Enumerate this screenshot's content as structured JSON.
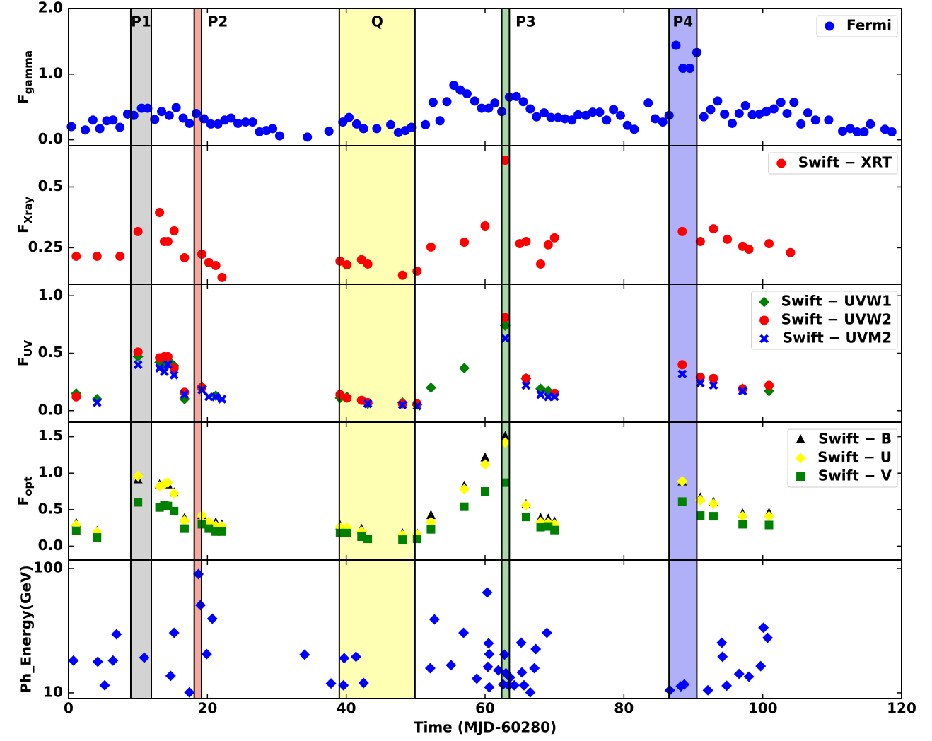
{
  "chart_data": [
    {
      "type": "scatter",
      "ylabel": "F",
      "ylabel_sub": "gamma",
      "xlim": [
        0,
        120
      ],
      "xticks": [
        0,
        20,
        40,
        60,
        80,
        100,
        120
      ],
      "ylim": [
        -0.09,
        2.0
      ],
      "yticks": [
        {
          "value": 0,
          "label": "0.0"
        },
        {
          "value": 1,
          "label": "1.0"
        },
        {
          "value": 2,
          "label": "2.0"
        }
      ],
      "legend": "upper right",
      "bands": [
        {
          "label": "P1",
          "range": [
            8.96,
            11.92
          ],
          "color": "#d3d3d3"
        },
        {
          "label": "P2",
          "range": [
            18.1,
            19.15
          ],
          "color": "#f4a8a0"
        },
        {
          "label": "Q",
          "range": [
            39.0,
            49.9
          ],
          "color": "#ffffb3"
        },
        {
          "label": "P3",
          "range": [
            62.4,
            63.5
          ],
          "color": "#a8d8a8"
        },
        {
          "label": "P4",
          "range": [
            86.5,
            90.5
          ],
          "color": "#b0b0f8"
        }
      ],
      "series": [
        {
          "name": "Fermi",
          "color": "#0000ff",
          "marker": "circle",
          "x": [
            0.4,
            2.4,
            3.5,
            4.5,
            5.5,
            6.4,
            7.4,
            8.5,
            9.4,
            10.5,
            11.4,
            12.4,
            13.4,
            14.5,
            15.5,
            16.5,
            17.4,
            18.4,
            19.5,
            20.5,
            21.5,
            22.5,
            23.4,
            24.4,
            25.5,
            26.5,
            27.5,
            28.5,
            29.4,
            30.4,
            34.4,
            37.5,
            39.5,
            40.4,
            41.5,
            42.5,
            44.4,
            46.4,
            47.5,
            48.5,
            49.4,
            51.4,
            52.5,
            53.5,
            54.5,
            55.5,
            56.4,
            57.4,
            58.5,
            59.5,
            60.5,
            61.4,
            62.4,
            63.5,
            64.5,
            65.5,
            66.5,
            67.4,
            68.5,
            69.5,
            70.5,
            71.5,
            72.5,
            73.4,
            74.5,
            75.5,
            76.5,
            77.5,
            78.5,
            79.5,
            80.5,
            81.5,
            83.5,
            84.5,
            85.6,
            86.5,
            87.5,
            88.5,
            89.5,
            90.5,
            91.5,
            92.5,
            93.5,
            94.5,
            95.6,
            96.6,
            97.5,
            98.5,
            99.5,
            100.5,
            101.6,
            102.6,
            103.5,
            104.5,
            105.5,
            106.5,
            107.6,
            109.5,
            111.5,
            112.6,
            113.6,
            114.6,
            115.5,
            117.6,
            118.6
          ],
          "values": [
            0.2,
            0.15,
            0.3,
            0.17,
            0.29,
            0.3,
            0.19,
            0.39,
            0.37,
            0.48,
            0.48,
            0.31,
            0.43,
            0.37,
            0.49,
            0.33,
            0.25,
            0.4,
            0.32,
            0.24,
            0.24,
            0.3,
            0.33,
            0.25,
            0.27,
            0.27,
            0.12,
            0.14,
            0.17,
            0.06,
            0.04,
            0.13,
            0.27,
            0.34,
            0.24,
            0.17,
            0.17,
            0.23,
            0.11,
            0.14,
            0.19,
            0.23,
            0.57,
            0.29,
            0.58,
            0.83,
            0.76,
            0.7,
            0.59,
            0.48,
            0.48,
            0.56,
            0.43,
            0.65,
            0.66,
            0.58,
            0.47,
            0.35,
            0.41,
            0.34,
            0.34,
            0.32,
            0.3,
            0.38,
            0.37,
            0.42,
            0.42,
            0.3,
            0.46,
            0.37,
            0.22,
            0.16,
            0.56,
            0.32,
            0.27,
            0.37,
            1.44,
            1.09,
            1.09,
            1.33,
            0.35,
            0.46,
            0.59,
            0.39,
            0.25,
            0.4,
            0.52,
            0.38,
            0.39,
            0.43,
            0.47,
            0.57,
            0.4,
            0.57,
            0.24,
            0.41,
            0.3,
            0.3,
            0.13,
            0.17,
            0.12,
            0.12,
            0.24,
            0.16,
            0.12
          ]
        }
      ]
    },
    {
      "type": "scatter",
      "ylabel": "F",
      "ylabel_sub": "Xray",
      "xlim": [
        0,
        120
      ],
      "xticks": [
        0,
        20,
        40,
        60,
        80,
        100,
        120
      ],
      "ylim": [
        0.1,
        0.67
      ],
      "yticks": [
        0.25,
        0.5
      ],
      "legend": "upper right",
      "series": [
        {
          "name": "Swift − XRT",
          "color": "#ff0000",
          "marker": "circle",
          "x": [
            1.1,
            4.1,
            7.4,
            10.0,
            13.1,
            13.8,
            14.3,
            15.2,
            16.7,
            19.2,
            20.2,
            21.2,
            22.1,
            39.1,
            40.1,
            42.2,
            43.1,
            48.1,
            50.2,
            52.2,
            57.0,
            60.0,
            62.9,
            65.0,
            65.9,
            68.0,
            69.1,
            70.0,
            88.4,
            91.0,
            92.9,
            94.9,
            97.1,
            98.0,
            100.9,
            104.0
          ],
          "values": [
            0.215,
            0.215,
            0.215,
            0.317,
            0.395,
            0.276,
            0.276,
            0.32,
            0.209,
            0.224,
            0.189,
            0.177,
            0.128,
            0.195,
            0.18,
            0.201,
            0.183,
            0.137,
            0.154,
            0.253,
            0.273,
            0.34,
            0.61,
            0.267,
            0.276,
            0.183,
            0.262,
            0.291,
            0.317,
            0.276,
            0.328,
            0.285,
            0.256,
            0.244,
            0.267,
            0.23
          ]
        }
      ]
    },
    {
      "type": "scatter",
      "ylabel": "F",
      "ylabel_sub": "UV",
      "xlim": [
        0,
        120
      ],
      "xticks": [
        0,
        20,
        40,
        60,
        80,
        100,
        120
      ],
      "ylim": [
        -0.1,
        1.1
      ],
      "yticks": [
        {
          "value": 0,
          "label": "0.0"
        },
        0.5,
        {
          "value": 1,
          "label": "1.0"
        }
      ],
      "legend": "upper right",
      "series": [
        {
          "name": "Swift − UVW1",
          "color": "#008000",
          "marker": "diamond",
          "x": [
            1.1,
            4.1,
            10.0,
            13.1,
            13.8,
            14.5,
            15.2,
            16.7,
            19.2,
            21.2,
            39.1,
            40.1,
            43.1,
            48.1,
            50.2,
            52.2,
            57.0,
            62.9,
            65.9,
            68.0,
            69.1,
            70.0,
            97.1,
            100.9
          ],
          "values": [
            0.15,
            0.1,
            0.47,
            0.42,
            0.38,
            0.43,
            0.39,
            0.1,
            0.21,
            0.13,
            0.11,
            0.12,
            0.06,
            0.07,
            0.05,
            0.2,
            0.37,
            0.74,
            0.28,
            0.19,
            0.17,
            0.14,
            0.19,
            0.17
          ]
        },
        {
          "name": "Swift − UVW2",
          "color": "#ff0000",
          "marker": "circle",
          "x": [
            1.1,
            10.0,
            13.1,
            13.8,
            14.3,
            15.2,
            16.7,
            19.2,
            39.1,
            40.1,
            42.2,
            43.1,
            48.1,
            50.2,
            62.9,
            65.9,
            70.0,
            88.4,
            91.0,
            92.9,
            97.1,
            100.9
          ],
          "values": [
            0.12,
            0.51,
            0.46,
            0.47,
            0.47,
            0.37,
            0.16,
            0.2,
            0.14,
            0.11,
            0.09,
            0.07,
            0.06,
            0.06,
            0.81,
            0.28,
            0.15,
            0.4,
            0.29,
            0.28,
            0.19,
            0.22
          ]
        },
        {
          "name": "Swift − UVM2",
          "color": "#0000ff",
          "marker": "x",
          "x": [
            4.1,
            10.0,
            13.1,
            13.8,
            14.3,
            15.2,
            16.7,
            19.2,
            20.2,
            21.2,
            22.1,
            43.1,
            48.1,
            50.2,
            62.9,
            65.9,
            68.0,
            69.1,
            70.0,
            88.4,
            91.0,
            92.9,
            97.1
          ],
          "values": [
            0.07,
            0.4,
            0.37,
            0.34,
            0.4,
            0.31,
            0.14,
            0.18,
            0.12,
            0.12,
            0.1,
            0.06,
            0.05,
            0.04,
            0.63,
            0.22,
            0.14,
            0.12,
            0.12,
            0.32,
            0.24,
            0.22,
            0.17
          ]
        }
      ]
    },
    {
      "type": "scatter",
      "ylabel": "F",
      "ylabel_sub": "opt",
      "xlim": [
        0,
        120
      ],
      "xticks": [
        0,
        20,
        40,
        60,
        80,
        100,
        120
      ],
      "ylim": [
        -0.19,
        1.7
      ],
      "yticks": [
        {
          "value": 0,
          "label": "0.0"
        },
        0.5,
        {
          "value": 1,
          "label": "1.0"
        },
        1.5
      ],
      "legend": "upper right",
      "series": [
        {
          "name": "Swift − B",
          "color": "#000000",
          "marker": "triangle",
          "x": [
            1.1,
            4.1,
            10.0,
            13.1,
            14.3,
            15.2,
            16.7,
            19.2,
            20.2,
            21.2,
            22.1,
            39.1,
            40.1,
            42.2,
            48.1,
            50.2,
            52.2,
            57.0,
            60.0,
            62.9,
            65.9,
            68.0,
            69.1,
            70.0,
            88.4,
            91.0,
            92.9,
            97.1,
            100.9
          ],
          "values": [
            0.31,
            0.2,
            0.91,
            0.84,
            0.84,
            0.73,
            0.38,
            0.42,
            0.33,
            0.32,
            0.29,
            0.28,
            0.25,
            0.23,
            0.17,
            0.17,
            0.42,
            0.82,
            1.21,
            1.5,
            0.57,
            0.38,
            0.37,
            0.33,
            0.88,
            0.66,
            0.6,
            0.44,
            0.45
          ]
        },
        {
          "name": "Swift − U",
          "color": "#ffff00",
          "marker": "diamond",
          "x": [
            1.1,
            4.1,
            10.0,
            13.1,
            13.8,
            14.3,
            15.2,
            16.7,
            19.2,
            20.2,
            21.2,
            22.1,
            39.1,
            40.1,
            42.2,
            48.1,
            50.2,
            52.2,
            57.0,
            60.0,
            62.9,
            65.9,
            68.0,
            69.1,
            70.0,
            88.4,
            91.0,
            92.9,
            97.1,
            100.9
          ],
          "values": [
            0.29,
            0.19,
            0.96,
            0.82,
            0.85,
            0.87,
            0.72,
            0.35,
            0.42,
            0.33,
            0.28,
            0.27,
            0.26,
            0.25,
            0.2,
            0.15,
            0.16,
            0.33,
            0.78,
            1.12,
            1.42,
            0.56,
            0.33,
            0.32,
            0.3,
            0.89,
            0.63,
            0.58,
            0.41,
            0.41
          ]
        },
        {
          "name": "Swift − V",
          "color": "#008000",
          "marker": "square",
          "x": [
            1.1,
            4.1,
            10.0,
            13.1,
            13.8,
            14.3,
            15.2,
            16.7,
            19.2,
            20.2,
            21.2,
            22.1,
            39.1,
            40.1,
            42.2,
            43.1,
            48.1,
            50.2,
            52.2,
            57.0,
            60.0,
            62.9,
            65.9,
            68.0,
            69.1,
            70.0,
            88.4,
            91.0,
            92.9,
            97.1,
            100.9
          ],
          "values": [
            0.21,
            0.12,
            0.6,
            0.53,
            0.56,
            0.55,
            0.48,
            0.24,
            0.3,
            0.24,
            0.2,
            0.2,
            0.18,
            0.18,
            0.13,
            0.1,
            0.09,
            0.1,
            0.23,
            0.54,
            0.75,
            0.87,
            0.4,
            0.26,
            0.27,
            0.22,
            0.61,
            0.42,
            0.41,
            0.3,
            0.29
          ]
        }
      ]
    },
    {
      "type": "scatter",
      "ylabel": "Ph_Energy(GeV)",
      "xlabel": "Time (MJD-60280)",
      "xlim": [
        0,
        120
      ],
      "xticks": [
        0,
        20,
        40,
        60,
        80,
        100,
        120
      ],
      "ylim": [
        9,
        117
      ],
      "yticks": [
        10,
        100
      ],
      "log_y": true,
      "series": [
        {
          "color": "#0000ff",
          "marker": "diamond",
          "x": [
            0.7,
            4.2,
            5.2,
            6.4,
            6.9,
            10.9,
            14.7,
            15.2,
            17.4,
            18.7,
            19.0,
            19.9,
            20.7,
            34.0,
            37.8,
            39.6,
            39.7,
            41.4,
            42.5,
            52.1,
            52.7,
            55.1,
            56.9,
            58.8,
            60.3,
            60.5,
            60.4,
            60.6,
            60.6,
            61.9,
            62.6,
            62.8,
            63.0,
            63.4,
            63.6,
            64.2,
            65.2,
            65.3,
            65.6,
            66.5,
            67.1,
            67.3,
            68.9,
            86.6,
            88.2,
            88.7,
            92.1,
            94.1,
            94.2,
            94.8,
            96.6,
            98.0,
            99.7,
            100.1,
            100.7
          ],
          "values": [
            18.2,
            17.8,
            11.5,
            18.2,
            29.6,
            19.2,
            13.7,
            30.4,
            10.1,
            90.1,
            50.7,
            20.5,
            39.5,
            20.3,
            11.9,
            11.5,
            19.0,
            19.5,
            12.0,
            15.8,
            39.0,
            16.7,
            30.4,
            13.0,
            64.1,
            25.0,
            16.2,
            20.5,
            11.1,
            15.2,
            11.7,
            20.3,
            14.4,
            11.5,
            13.3,
            11.5,
            25.3,
            14.6,
            11.5,
            10.1,
            15.8,
            22.5,
            30.4,
            10.5,
            11.3,
            11.7,
            10.5,
            25.3,
            19.5,
            11.4,
            14.2,
            13.5,
            16.4,
            33.4,
            27.7
          ]
        }
      ]
    }
  ]
}
